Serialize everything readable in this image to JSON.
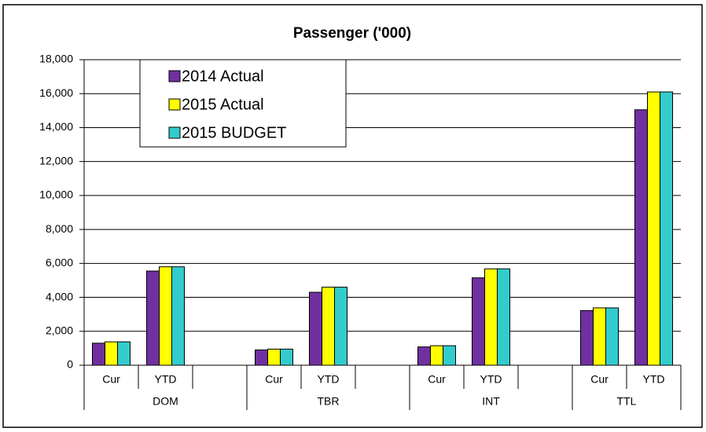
{
  "chart_data": {
    "type": "bar",
    "title": "Passenger ('000)",
    "categories": [
      "Cur",
      "YTD",
      null,
      "Cur",
      "YTD",
      null,
      "Cur",
      "YTD",
      null,
      "Cur",
      "YTD"
    ],
    "groups": [
      "DOM",
      "TBR",
      "INT",
      "TTL"
    ],
    "series": [
      {
        "name": "2014 Actual",
        "color": "#7030a0",
        "values": [
          1300,
          5550,
          null,
          900,
          4300,
          null,
          1080,
          5150,
          null,
          3220,
          15050
        ]
      },
      {
        "name": "2015 Actual",
        "color": "#ffff00",
        "values": [
          1380,
          5800,
          null,
          950,
          4600,
          null,
          1150,
          5680,
          null,
          3380,
          16100
        ]
      },
      {
        "name": "2015 BUDGET",
        "color": "#33cccc",
        "values": [
          1380,
          5800,
          null,
          950,
          4600,
          null,
          1150,
          5680,
          null,
          3380,
          16100
        ]
      }
    ],
    "ylim": [
      0,
      18000
    ],
    "yticks": [
      0,
      {
        "value": 2000,
        "label": "2,000"
      },
      {
        "value": 4000,
        "label": "4,000"
      },
      {
        "value": 6000,
        "label": "6,000"
      },
      {
        "value": 8000,
        "label": "8,000"
      },
      {
        "value": 10000,
        "label": "10,000"
      },
      {
        "value": 12000,
        "label": "12,000"
      },
      {
        "value": 14000,
        "label": "14,000"
      },
      {
        "value": 16000,
        "label": "16,000"
      },
      {
        "value": 18000,
        "label": "18,000"
      }
    ],
    "grid": true,
    "legend": "top-left"
  }
}
